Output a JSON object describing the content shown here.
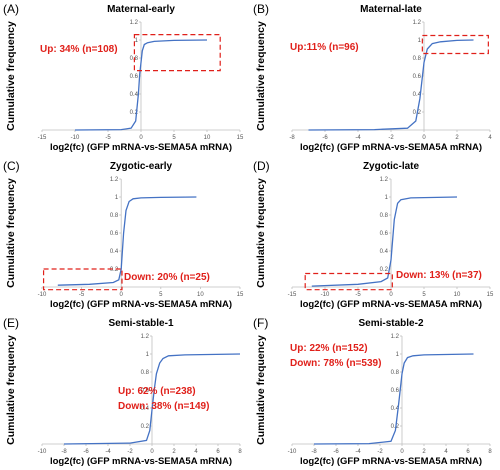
{
  "figure": {
    "panels": [
      {
        "label": "(A)",
        "title": "Maternal-early",
        "ylabel": "Cumulative frequency",
        "xlabel": "log2(fc) (GFP mRNA-vs-SEMA5A mRNA)",
        "annotations": [
          "Up: 34% (n=108)"
        ]
      },
      {
        "label": "(B)",
        "title": "Maternal-late",
        "ylabel": "Cumulative frequency",
        "xlabel": "log2(fc) (GFP mRNA-vs-SEMA5A mRNA)",
        "annotations": [
          "Up:11% (n=96)"
        ]
      },
      {
        "label": "(C)",
        "title": "Zygotic-early",
        "ylabel": "Cumulative frequency",
        "xlabel": "log2(fc) (GFP mRNA-vs-SEMA5A mRNA)",
        "annotations": [
          "Down: 20% (n=25)"
        ]
      },
      {
        "label": "(D)",
        "title": "Zygotic-late",
        "ylabel": "Cumulative frequency",
        "xlabel": "log2(fc) (GFP mRNA-vs-SEMA5A mRNA)",
        "annotations": [
          "Down: 13% (n=37)"
        ]
      },
      {
        "label": "(E)",
        "title": "Semi-stable-1",
        "ylabel": "Cumulative frequency",
        "xlabel": "log2(fc) (GFP mRNA-vs-SEMA5A mRNA)",
        "annotations": [
          "Up: 62% (n=238)",
          "Down: 38% (n=149)"
        ]
      },
      {
        "label": "(F)",
        "title": "Semi-stable-2",
        "ylabel": "Cumulative frequency",
        "xlabel": "log2(fc) (GFP mRNA-vs-SEMA5A mRNA)",
        "annotations": [
          "Up: 22% (n=152)",
          "Down: 78% (n=539)"
        ]
      }
    ]
  },
  "colors": {
    "curve": "#4472c4",
    "annotation": "#e0201a",
    "axis": "#bfbfbf"
  },
  "chart_data": [
    {
      "type": "line",
      "title": "Maternal-early",
      "xlabel": "log2(fc) (GFP mRNA-vs-SEMA5A mRNA)",
      "ylabel": "Cumulative frequency",
      "xlim": [
        -15,
        15
      ],
      "ylim": [
        0,
        1.2
      ],
      "xticks": [
        -15,
        -10,
        -5,
        0,
        5,
        10,
        15
      ],
      "yticks": [
        0,
        0.2,
        0.4,
        0.6,
        0.8,
        1,
        1.2
      ],
      "grid": false,
      "series": [
        {
          "x": [
            -10,
            -3,
            -1.5,
            -0.8,
            -0.4,
            -0.2,
            0,
            0.2,
            0.5,
            1,
            2,
            5,
            10
          ],
          "y": [
            0,
            0.005,
            0.02,
            0.1,
            0.4,
            0.62,
            0.75,
            0.88,
            0.95,
            0.97,
            0.985,
            0.995,
            1
          ]
        }
      ],
      "highlight_box": {
        "x": [
          -1,
          12
        ],
        "y": [
          0.66,
          1.06
        ]
      }
    },
    {
      "type": "line",
      "title": "Maternal-late",
      "xlabel": "log2(fc) (GFP mRNA-vs-SEMA5A mRNA)",
      "ylabel": "Cumulative frequency",
      "xlim": [
        -8,
        4
      ],
      "ylim": [
        0,
        1.2
      ],
      "xticks": [
        -8,
        -6,
        -4,
        -2,
        0,
        2,
        4
      ],
      "yticks": [
        0,
        0.2,
        0.4,
        0.6,
        0.8,
        1,
        1.2
      ],
      "grid": false,
      "series": [
        {
          "x": [
            -7,
            -3,
            -1,
            -0.5,
            -0.25,
            0,
            0.2,
            0.5,
            1,
            2,
            3
          ],
          "y": [
            0,
            0.005,
            0.02,
            0.1,
            0.35,
            0.75,
            0.9,
            0.96,
            0.98,
            0.995,
            1
          ]
        }
      ],
      "highlight_box": {
        "x": [
          -0.1,
          3.9
        ],
        "y": [
          0.85,
          1.05
        ]
      }
    },
    {
      "type": "line",
      "title": "Zygotic-early",
      "xlabel": "log2(fc) (GFP mRNA-vs-SEMA5A mRNA)",
      "ylabel": "Cumulative frequency",
      "xlim": [
        -10,
        15
      ],
      "ylim": [
        0,
        1.2
      ],
      "xticks": [
        -10,
        -5,
        0,
        5,
        10,
        15
      ],
      "yticks": [
        0,
        0.2,
        0.4,
        0.6,
        0.8,
        1,
        1.2
      ],
      "grid": false,
      "series": [
        {
          "x": [
            -8,
            -4,
            -1,
            -0.3,
            0,
            0.3,
            0.6,
            1,
            1.5,
            2.5,
            5,
            9.5
          ],
          "y": [
            0.02,
            0.03,
            0.05,
            0.08,
            0.2,
            0.6,
            0.85,
            0.95,
            0.98,
            0.99,
            0.995,
            1
          ]
        }
      ],
      "highlight_box": {
        "x": [
          -9.8,
          0.1
        ],
        "y": [
          -0.03,
          0.2
        ]
      }
    },
    {
      "type": "line",
      "title": "Zygotic-late",
      "xlabel": "log2(fc) (GFP mRNA-vs-SEMA5A mRNA)",
      "ylabel": "Cumulative frequency",
      "xlim": [
        -15,
        15
      ],
      "ylim": [
        0,
        1.2
      ],
      "xticks": [
        -15,
        -10,
        -5,
        0,
        5,
        10,
        15
      ],
      "yticks": [
        0,
        0.2,
        0.4,
        0.6,
        0.8,
        1,
        1.2
      ],
      "grid": false,
      "series": [
        {
          "x": [
            -12,
            -5,
            -1.5,
            -0.5,
            0,
            0.5,
            1,
            1.5,
            3,
            10
          ],
          "y": [
            0.01,
            0.03,
            0.06,
            0.1,
            0.3,
            0.75,
            0.93,
            0.97,
            0.99,
            1
          ]
        }
      ],
      "highlight_box": {
        "x": [
          -13,
          0.2
        ],
        "y": [
          -0.03,
          0.15
        ]
      }
    },
    {
      "type": "line",
      "title": "Semi-stable-1",
      "xlabel": "log2(fc) (GFP mRNA-vs-SEMA5A mRNA)",
      "ylabel": "Cumulative frequency",
      "xlim": [
        -10,
        8
      ],
      "ylim": [
        0,
        1.2
      ],
      "xticks": [
        -10,
        -8,
        -6,
        -4,
        -2,
        0,
        2,
        4,
        6,
        8
      ],
      "yticks": [
        0,
        0.2,
        0.4,
        0.6,
        0.8,
        1,
        1.2
      ],
      "grid": false,
      "series": [
        {
          "x": [
            -8,
            -2,
            -0.5,
            -0.2,
            0,
            0.2,
            0.4,
            0.7,
            1,
            1.5,
            3,
            8
          ],
          "y": [
            0,
            0.01,
            0.04,
            0.15,
            0.38,
            0.6,
            0.78,
            0.9,
            0.95,
            0.98,
            0.99,
            1
          ]
        }
      ]
    },
    {
      "type": "line",
      "title": "Semi-stable-2",
      "xlabel": "log2(fc) (GFP mRNA-vs-SEMA5A mRNA)",
      "ylabel": "Cumulative frequency",
      "xlim": [
        -10,
        8
      ],
      "ylim": [
        0,
        1.2
      ],
      "xticks": [
        -10,
        -8,
        -6,
        -4,
        -2,
        0,
        2,
        4,
        6,
        8
      ],
      "yticks": [
        0,
        0.2,
        0.4,
        0.6,
        0.8,
        1,
        1.2
      ],
      "grid": false,
      "series": [
        {
          "x": [
            -8,
            -3,
            -1,
            -0.6,
            -0.3,
            0,
            0.2,
            0.5,
            1,
            2,
            6.5
          ],
          "y": [
            0,
            0.005,
            0.03,
            0.15,
            0.45,
            0.78,
            0.9,
            0.96,
            0.98,
            0.99,
            1
          ]
        }
      ]
    }
  ]
}
